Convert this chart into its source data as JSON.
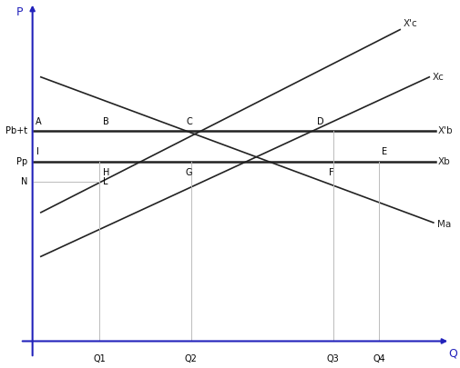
{
  "xlabel": "Q",
  "ylabel": "P",
  "xlim": [
    0,
    10
  ],
  "ylim": [
    0,
    10
  ],
  "figsize": [
    5.05,
    4.05
  ],
  "dpi": 100,
  "price_pbt": 6.2,
  "price_pp": 5.3,
  "price_n": 4.7,
  "q1": 1.6,
  "q2": 3.8,
  "q3": 7.2,
  "q4": 8.3,
  "demand_x0": 0.2,
  "demand_y0": 7.8,
  "demand_x1": 9.6,
  "demand_y1": 3.5,
  "xc_x0": 0.2,
  "xc_y0": 2.5,
  "xc_x1": 9.5,
  "xc_y1": 7.8,
  "xc_prime_x0": 0.2,
  "xc_prime_y0": 3.8,
  "xc_prime_x1": 8.8,
  "xc_prime_y1": 9.2,
  "xb_y": 5.3,
  "xbp_y": 6.2,
  "xb_label": "Xb",
  "xb_prime_label": "X'b",
  "xc_label": "Xc",
  "xc_prime_label": "X'c",
  "ma_label": "Ma",
  "axis_color": "#2222bb",
  "line_color": "#222222",
  "vertical_color": "#bbbbbb",
  "x_tick_labels": [
    "Q1",
    "Q2",
    "Q3",
    "Q4"
  ],
  "y_tick_labels": [
    "Pb+t",
    "Pp"
  ]
}
